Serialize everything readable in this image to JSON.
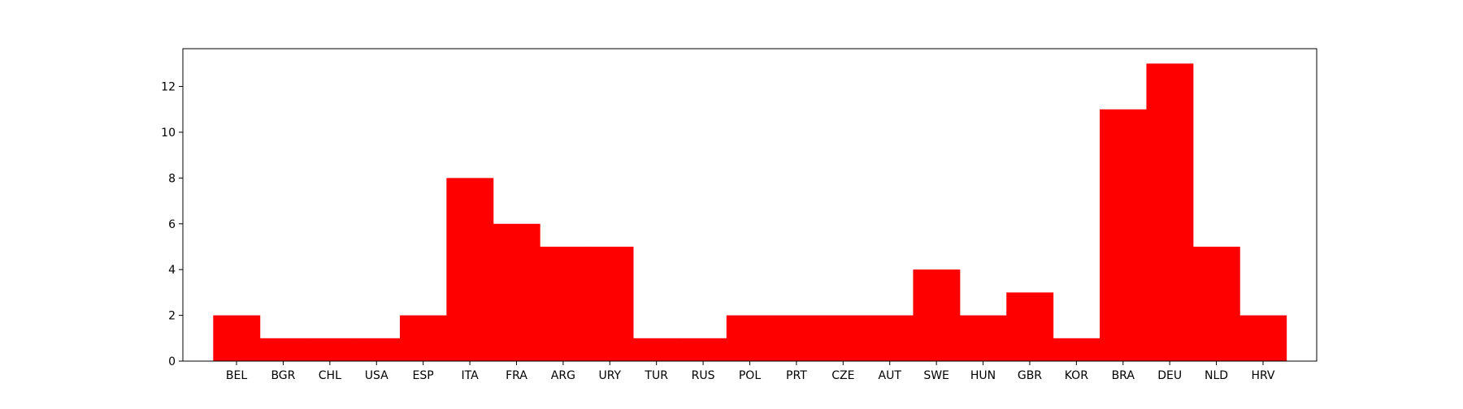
{
  "chart_data": {
    "type": "bar",
    "title": "",
    "xlabel": "",
    "ylabel": "",
    "categories": [
      "BEL",
      "BGR",
      "CHL",
      "USA",
      "ESP",
      "ITA",
      "FRA",
      "ARG",
      "URY",
      "TUR",
      "RUS",
      "POL",
      "PRT",
      "CZE",
      "AUT",
      "SWE",
      "HUN",
      "GBR",
      "KOR",
      "BRA",
      "DEU",
      "NLD",
      "HRV"
    ],
    "values": [
      2,
      1,
      1,
      1,
      2,
      8,
      6,
      5,
      5,
      1,
      1,
      2,
      2,
      2,
      2,
      4,
      2,
      3,
      1,
      11,
      13,
      5,
      2
    ],
    "ylim": [
      0,
      13.65
    ],
    "yticks": [
      0,
      2,
      4,
      6,
      8,
      10,
      12
    ],
    "grid": false,
    "legend": "none",
    "bar_color": "#ff0000"
  }
}
